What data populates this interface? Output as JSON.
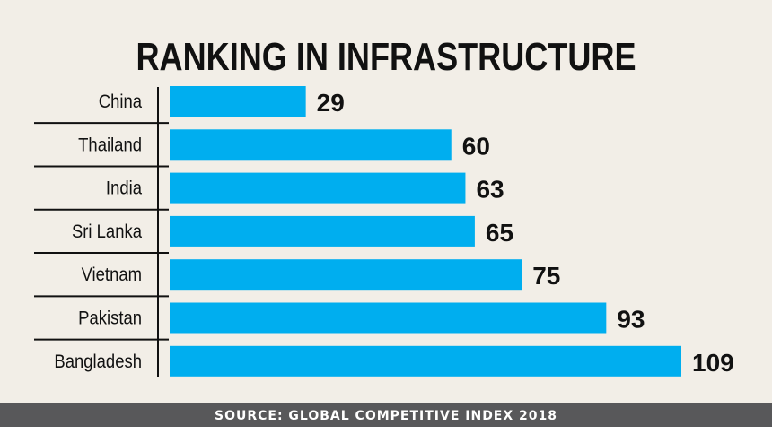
{
  "chart_data": {
    "type": "bar",
    "orientation": "horizontal",
    "title": "RANKING IN INFRASTRUCTURE",
    "categories": [
      "China",
      "Thailand",
      "India",
      "Sri Lanka",
      "Vietnam",
      "Pakistan",
      "Bangladesh"
    ],
    "values": [
      29,
      60,
      63,
      65,
      75,
      93,
      109
    ],
    "xlim": [
      0,
      109
    ],
    "grid": false,
    "data_labels": true,
    "source": "SOURCE: GLOBAL COMPETITIVE INDEX 2018",
    "colors": {
      "bar": "#00aeef",
      "background": "#f2eee7",
      "footer": "#58585a",
      "text": "#111111"
    }
  }
}
